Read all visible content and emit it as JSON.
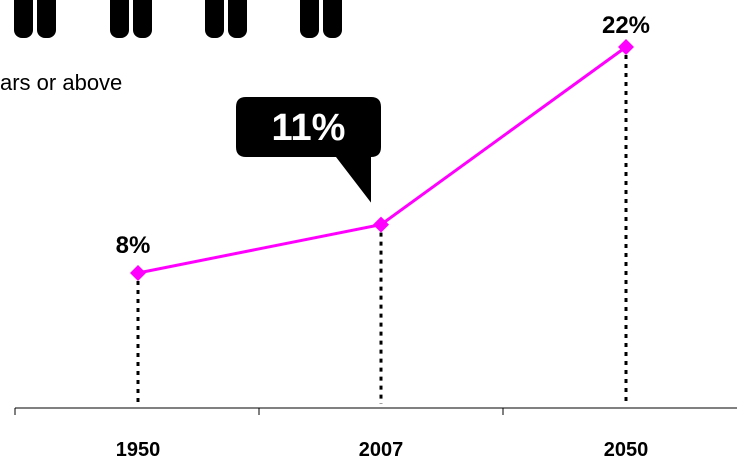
{
  "subtitle": "ars or above",
  "colors": {
    "line": "#ff00ff",
    "marker": "#ff00ff",
    "text": "#000000",
    "callout_bg": "#000000",
    "callout_text": "#ffffff",
    "icons": "#000000"
  },
  "icons": [
    "person-figure-icon",
    "person-figure-icon",
    "person-figure-icon",
    "person-figure-icon"
  ],
  "chart_data": {
    "type": "line",
    "categories": [
      "1950",
      "2007",
      "2050"
    ],
    "series": [
      {
        "values": [
          8,
          11,
          22
        ],
        "labels": [
          "8%",
          "11%",
          "22%"
        ]
      }
    ],
    "highlight": {
      "category": "2007",
      "label": "11%",
      "style": "callout"
    },
    "ylim": [
      0,
      22
    ],
    "grid": false,
    "legend": "none",
    "xlabel": "",
    "ylabel": ""
  }
}
